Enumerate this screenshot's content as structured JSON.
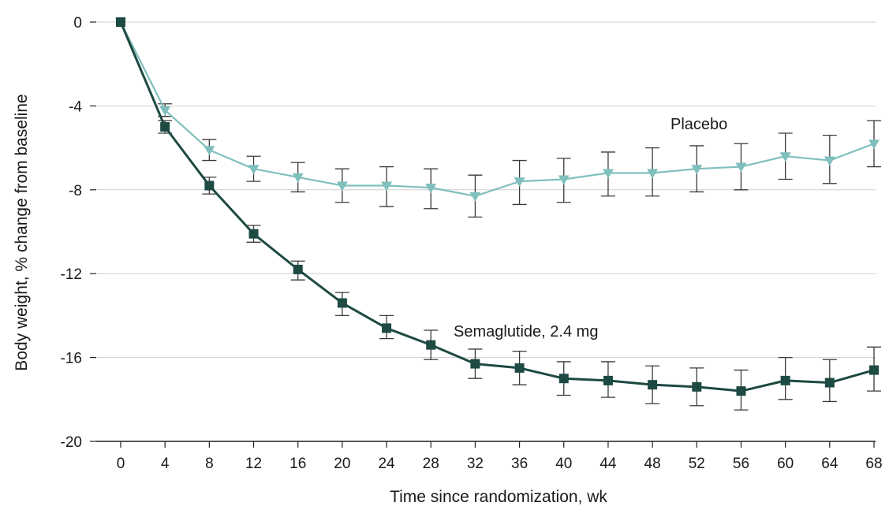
{
  "chart_data": {
    "type": "line",
    "xlabel": "Time since randomization, wk",
    "ylabel": "Body weight, % change from baseline",
    "x": [
      0,
      4,
      8,
      12,
      16,
      20,
      24,
      28,
      32,
      36,
      40,
      44,
      48,
      52,
      56,
      60,
      64,
      68
    ],
    "xticks": [
      "0",
      "4",
      "8",
      "12",
      "16",
      "20",
      "24",
      "28",
      "32",
      "36",
      "40",
      "44",
      "48",
      "52",
      "56",
      "60",
      "64",
      "68"
    ],
    "yticks": [
      "0",
      "-4",
      "-8",
      "-12",
      "-16",
      "-20"
    ],
    "ytick_values": [
      0,
      -4,
      -8,
      -12,
      -16,
      -20
    ],
    "xlim": [
      0,
      68
    ],
    "ylim": [
      -20,
      0
    ],
    "grid": "horizontal",
    "series": [
      {
        "name": "Placebo",
        "color": "#7fbfbd",
        "marker": "triangle-down",
        "values": [
          0,
          -4.2,
          -6.1,
          -7.0,
          -7.4,
          -7.8,
          -7.8,
          -7.9,
          -8.3,
          -7.6,
          -7.5,
          -7.2,
          -7.2,
          -7.0,
          -6.9,
          -6.4,
          -6.6,
          -5.8
        ],
        "error_low": [
          0,
          -4.5,
          -6.6,
          -7.6,
          -8.1,
          -8.6,
          -8.8,
          -8.9,
          -9.3,
          -8.7,
          -8.6,
          -8.3,
          -8.3,
          -8.1,
          -8.0,
          -7.5,
          -7.7,
          -6.9
        ],
        "error_high": [
          0,
          -3.9,
          -5.6,
          -6.4,
          -6.7,
          -7.0,
          -6.9,
          -7.0,
          -7.3,
          -6.6,
          -6.5,
          -6.2,
          -6.0,
          -5.9,
          -5.8,
          -5.3,
          -5.4,
          -4.7
        ]
      },
      {
        "name": "Semaglutide, 2.4 mg",
        "color": "#1d4a42",
        "marker": "square",
        "values": [
          0,
          -5.0,
          -7.8,
          -10.1,
          -11.8,
          -13.4,
          -14.6,
          -15.4,
          -16.3,
          -16.5,
          -17.0,
          -17.1,
          -17.3,
          -17.4,
          -17.6,
          -17.1,
          -17.2,
          -16.6
        ],
        "error_low": [
          0,
          -5.3,
          -8.2,
          -10.5,
          -12.3,
          -14.0,
          -15.1,
          -16.1,
          -17.0,
          -17.3,
          -17.8,
          -17.9,
          -18.2,
          -18.3,
          -18.5,
          -18.0,
          -18.1,
          -17.6
        ],
        "error_high": [
          0,
          -4.7,
          -7.4,
          -9.7,
          -11.4,
          -12.9,
          -14.0,
          -14.7,
          -15.6,
          -15.7,
          -16.2,
          -16.2,
          -16.4,
          -16.5,
          -16.6,
          -16.0,
          -16.1,
          -15.5
        ]
      }
    ]
  }
}
